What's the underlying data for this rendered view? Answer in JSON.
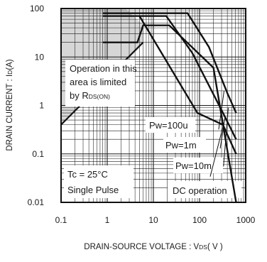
{
  "chart_data": {
    "type": "line",
    "log_x": true,
    "log_y": true,
    "xlim": [
      0.1,
      1000
    ],
    "ylim": [
      0.01,
      100
    ],
    "grid": true,
    "x_ticks": [
      {
        "value": 0.1,
        "label": "0.1"
      },
      {
        "value": 1,
        "label": "1"
      },
      {
        "value": 10,
        "label": "10"
      },
      {
        "value": 100,
        "label": "100"
      },
      {
        "value": 1000,
        "label": "1000"
      }
    ],
    "y_ticks": [
      {
        "value": 100,
        "label": "100"
      },
      {
        "value": 10,
        "label": "10"
      },
      {
        "value": 1,
        "label": "1"
      },
      {
        "value": 0.1,
        "label": "0.1"
      },
      {
        "value": 0.01,
        "label": "0.01"
      }
    ],
    "xlabel": {
      "main": "DRAIN-SOURCE VOLTAGE : V",
      "sub": "DS",
      "tail": "( V )"
    },
    "ylabel": {
      "main": "DRAIN CURRENT : I",
      "sub": "D",
      "tail": "(A)"
    },
    "limited_region": {
      "color": "#d6d6d6",
      "vertices": [
        [
          0.1,
          0.4
        ],
        [
          0.1,
          100
        ],
        [
          2.5,
          100
        ],
        [
          6,
          45
        ],
        [
          6,
          20
        ]
      ],
      "rds_line": [
        [
          0.1,
          0.4
        ],
        [
          6,
          20
        ]
      ]
    },
    "series": [
      {
        "name": "Pw=100u",
        "points": [
          [
            0.8,
            20
          ],
          [
            4.5,
            20
          ],
          [
            6,
            45
          ],
          [
            22,
            45
          ],
          [
            200,
            6
          ],
          [
            620,
            0.01
          ]
        ]
      },
      {
        "name": "Pw=1m",
        "points": [
          [
            0.8,
            70
          ],
          [
            19,
            70
          ],
          [
            70,
            12
          ],
          [
            350,
            0.6
          ],
          [
            620,
            0.2
          ]
        ]
      },
      {
        "name": "Pw=10m",
        "points": [
          [
            0.8,
            80
          ],
          [
            55,
            80
          ],
          [
            160,
            16
          ],
          [
            400,
            1.8
          ],
          [
            620,
            0.7
          ]
        ]
      },
      {
        "name": "DC operation",
        "points": [
          [
            5,
            70
          ],
          [
            90,
            0.7
          ],
          [
            320,
            0.4
          ],
          [
            620,
            0.1
          ]
        ]
      }
    ],
    "annotations": {
      "limit_text": [
        "Operation in this",
        "area is limited"
      ],
      "limit_by": "by R",
      "limit_by_sub": "DS(ON)",
      "pw_100u": "Pw=100u",
      "pw_1m": "Pw=1m",
      "pw_10m": "Pw=10m",
      "dc": "DC operation",
      "conditions": [
        "Tc = 25°C",
        "Single Pulse"
      ]
    },
    "leader_lines": [
      {
        "label": "Pw=100u",
        "from": [
          260,
          0.32
        ],
        "to": [
          340,
          2
        ]
      },
      {
        "label": "Pw=1m",
        "from": [
          280,
          0.13
        ],
        "to": [
          360,
          0.6
        ]
      },
      {
        "label": "Pw=10m",
        "from": [
          330,
          0.055
        ],
        "to": [
          420,
          0.9
        ]
      },
      {
        "label": "DC operation",
        "from": [
          170,
          0.034
        ],
        "to": [
          330,
          0.4
        ]
      }
    ]
  }
}
